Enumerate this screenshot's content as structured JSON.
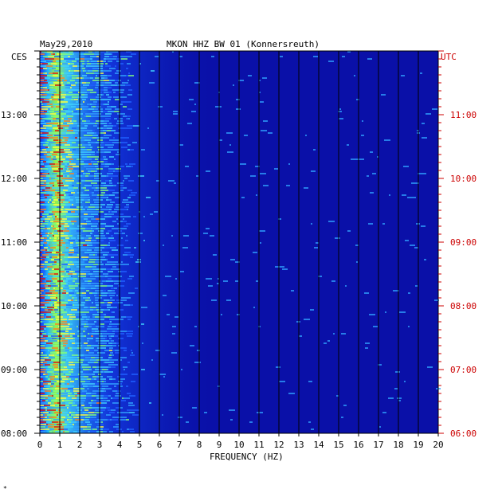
{
  "chart_data": {
    "type": "heatmap",
    "date_label": "May29,2010",
    "station_label": "MKON HHZ BW 01 (Konnersreuth)",
    "left_timezone": "CES",
    "right_timezone": "UTC",
    "xlabel": "FREQUENCY (HZ)",
    "x_range": [
      0,
      20
    ],
    "x_ticks": [
      "0",
      "1",
      "2",
      "3",
      "4",
      "5",
      "6",
      "7",
      "8",
      "9",
      "10",
      "11",
      "12",
      "13",
      "14",
      "15",
      "16",
      "17",
      "18",
      "19",
      "20"
    ],
    "left_ticks": [
      "13:00",
      "12:00",
      "11:00",
      "10:00",
      "09:00",
      "08:00"
    ],
    "right_ticks": [
      "11:00",
      "10:00",
      "09:00",
      "08:00",
      "07:00",
      "06:00"
    ],
    "footnote": "*",
    "colors": {
      "background": "#0a10a8",
      "grid": "#000000",
      "utc_text": "#cc0000",
      "text": "#000000"
    }
  }
}
